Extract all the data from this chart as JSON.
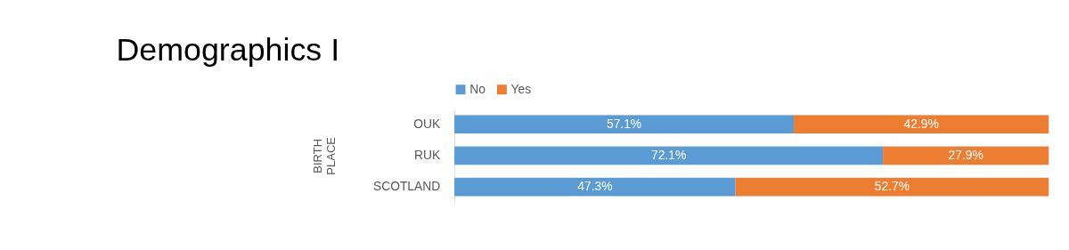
{
  "chart_data": {
    "type": "bar",
    "orientation": "horizontal",
    "stacked": true,
    "title": "Demographics I",
    "ylabel": "BIRTH PLACE",
    "categories": [
      "OUK",
      "RUK",
      "SCOTLAND"
    ],
    "series": [
      {
        "name": "No",
        "color": "#5b9bd5",
        "values": [
          57.1,
          72.1,
          47.3
        ],
        "value_labels": [
          "57.1%",
          "72.1%",
          "47.3%"
        ]
      },
      {
        "name": "Yes",
        "color": "#ed7d31",
        "values": [
          42.9,
          27.9,
          52.7
        ],
        "value_labels": [
          "42.9%",
          "27.9%",
          "52.7%"
        ]
      }
    ],
    "xlim": [
      0,
      100
    ],
    "tick_labels": "y",
    "grid": "y",
    "legend": "top"
  }
}
